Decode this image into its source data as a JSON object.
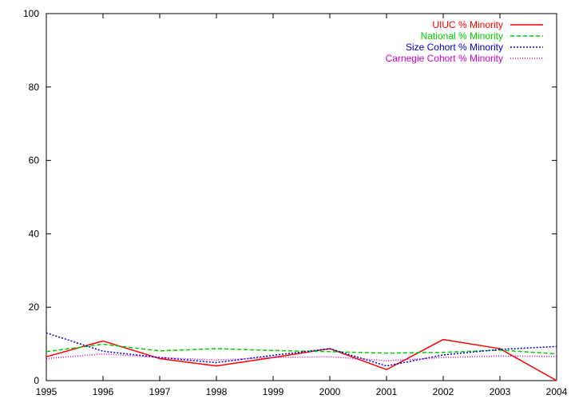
{
  "chart_data": {
    "type": "line",
    "title": "",
    "xlabel": "",
    "ylabel": "",
    "x": [
      1995,
      1996,
      1997,
      1998,
      1999,
      2000,
      2001,
      2002,
      2003,
      2004
    ],
    "xlim": [
      1995,
      2004
    ],
    "ylim": [
      0,
      100
    ],
    "x_ticks": [
      "1995",
      "1996",
      "1997",
      "1998",
      "1999",
      "2000",
      "2001",
      "2002",
      "2003",
      "2004"
    ],
    "y_ticks": [
      "0",
      "20",
      "40",
      "60",
      "80",
      "100"
    ],
    "grid": false,
    "legend_position": "top-right",
    "series": [
      {
        "name": "UIUC % Minority",
        "color": "#ff0000",
        "dash": "solid",
        "values": [
          6.5,
          10.8,
          6.0,
          4.0,
          6.3,
          8.7,
          3.0,
          11.2,
          8.7,
          0.0
        ]
      },
      {
        "name": "National % Minority",
        "color": "#00cc00",
        "dash": "dashed",
        "values": [
          7.9,
          9.9,
          8.1,
          8.7,
          8.2,
          7.9,
          7.5,
          7.7,
          8.3,
          7.3
        ]
      },
      {
        "name": "Size Cohort % Minority",
        "color": "#0000cc",
        "dash": "dotted-dense",
        "values": [
          13.0,
          8.0,
          6.3,
          4.9,
          6.9,
          8.7,
          4.0,
          7.0,
          8.5,
          9.3
        ]
      },
      {
        "name": "Carnegie Cohort % Minority",
        "color": "#cc00cc",
        "dash": "dotted",
        "values": [
          6.0,
          7.3,
          6.3,
          5.6,
          6.3,
          6.5,
          5.4,
          6.3,
          6.7,
          6.6
        ]
      }
    ]
  }
}
